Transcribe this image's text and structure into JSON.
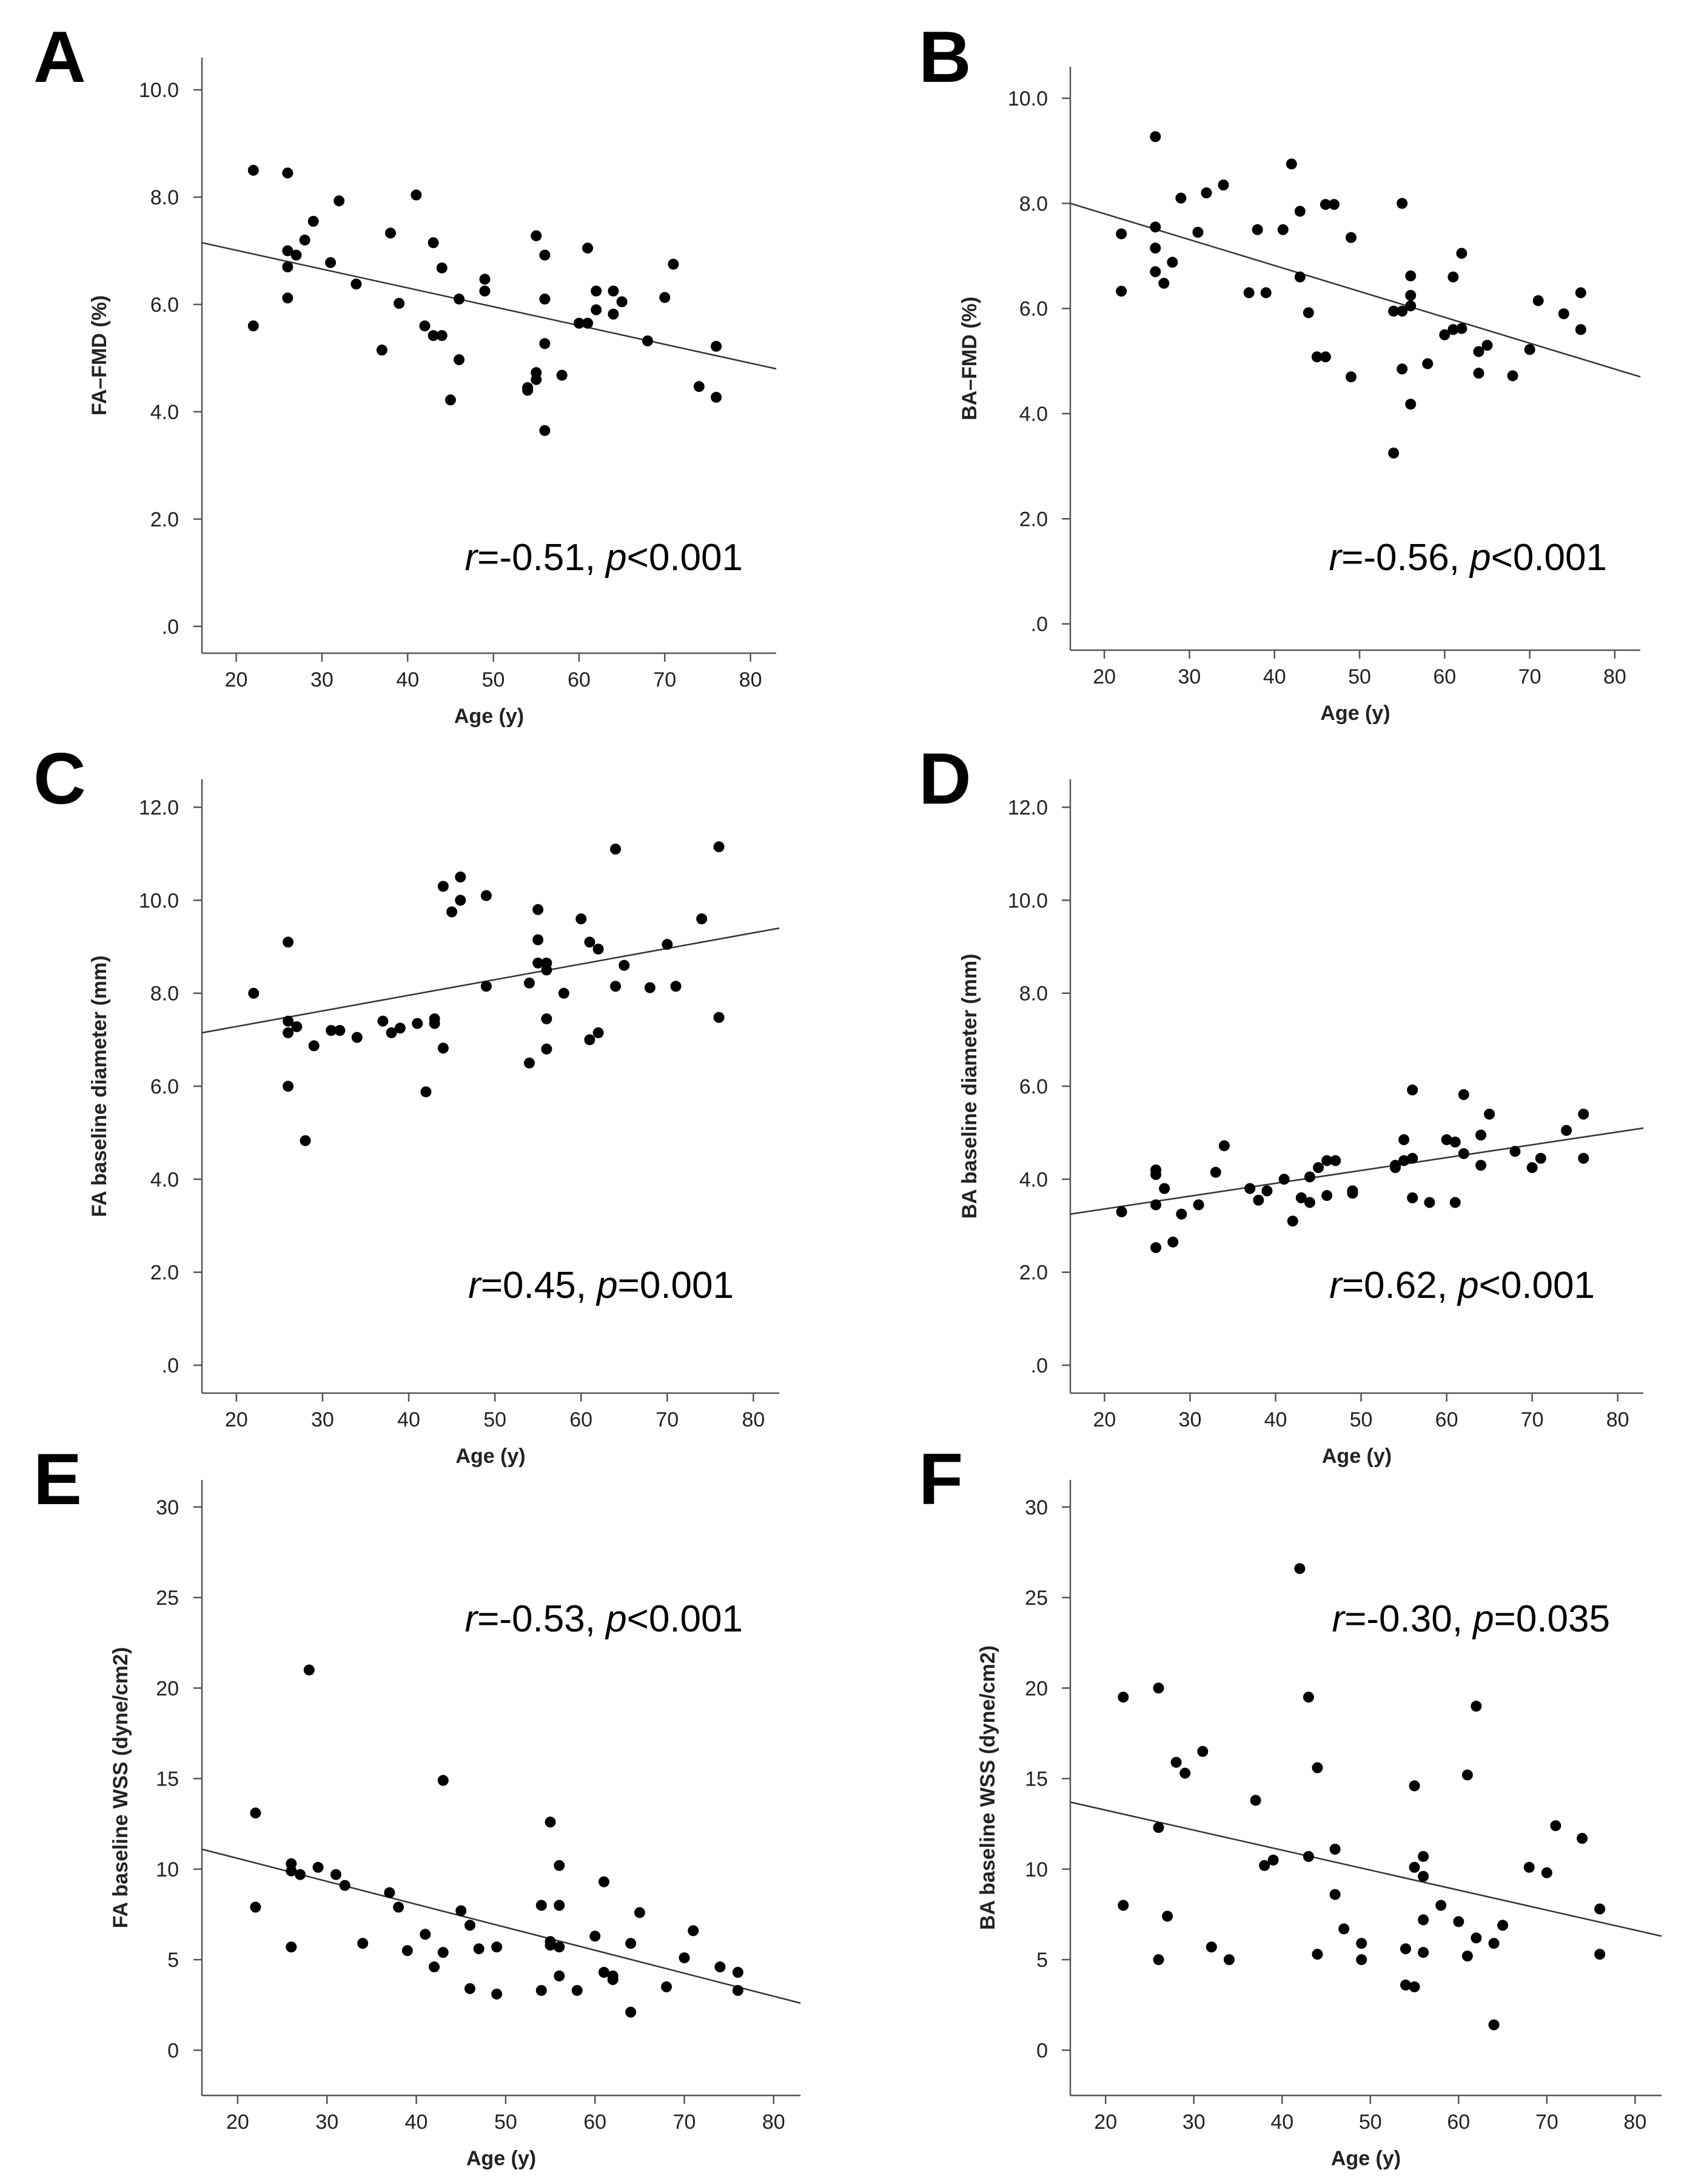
{
  "chart_data": [
    {
      "panel": "A",
      "type": "scatter",
      "xlabel": "Age (y)",
      "ylabel": "FA–FMD (%)",
      "xlim": [
        16,
        83
      ],
      "ylim": [
        -0.5,
        10.6
      ],
      "xticks": [
        20,
        30,
        40,
        50,
        60,
        70,
        80
      ],
      "yticks": [
        0,
        2,
        4,
        6,
        8,
        10
      ],
      "yticklabels": [
        ".0",
        "2.0",
        "4.0",
        "6.0",
        "8.0",
        "10.0"
      ],
      "annotation": {
        "stat": "r",
        "r_text": "=-0.51, ",
        "p_label": "p",
        "p_text": "<0.001"
      },
      "fit": [
        [
          16,
          7.15
        ],
        [
          83,
          4.8
        ]
      ],
      "points": [
        [
          22,
          8.5
        ],
        [
          22,
          5.6
        ],
        [
          26,
          8.45
        ],
        [
          26,
          7.0
        ],
        [
          26,
          6.7
        ],
        [
          26,
          6.12
        ],
        [
          27,
          6.92
        ],
        [
          28,
          7.2
        ],
        [
          29,
          7.55
        ],
        [
          31,
          6.78
        ],
        [
          32,
          7.93
        ],
        [
          34,
          6.38
        ],
        [
          37,
          5.15
        ],
        [
          38,
          7.33
        ],
        [
          39,
          6.02
        ],
        [
          41,
          8.04
        ],
        [
          42,
          5.6
        ],
        [
          43,
          7.15
        ],
        [
          43,
          5.42
        ],
        [
          44,
          6.68
        ],
        [
          44,
          5.42
        ],
        [
          45,
          4.22
        ],
        [
          46,
          6.1
        ],
        [
          46,
          4.97
        ],
        [
          49,
          6.47
        ],
        [
          49,
          6.25
        ],
        [
          54,
          4.45
        ],
        [
          54,
          4.4
        ],
        [
          55,
          7.28
        ],
        [
          55,
          4.73
        ],
        [
          55,
          4.6
        ],
        [
          56,
          6.92
        ],
        [
          56,
          6.1
        ],
        [
          56,
          5.27
        ],
        [
          56,
          3.65
        ],
        [
          58,
          4.68
        ],
        [
          60,
          5.65
        ],
        [
          61,
          7.05
        ],
        [
          61,
          5.65
        ],
        [
          62,
          6.25
        ],
        [
          62,
          5.9
        ],
        [
          64,
          6.25
        ],
        [
          64,
          5.82
        ],
        [
          65,
          6.05
        ],
        [
          68,
          5.32
        ],
        [
          70,
          6.13
        ],
        [
          71,
          6.75
        ],
        [
          74,
          4.47
        ],
        [
          76,
          5.22
        ],
        [
          76,
          4.27
        ]
      ]
    },
    {
      "panel": "B",
      "type": "scatter",
      "xlabel": "Age (y)",
      "ylabel": "BA–FMD (%)",
      "xlim": [
        16,
        83
      ],
      "ylim": [
        -0.5,
        10.6
      ],
      "xticks": [
        20,
        30,
        40,
        50,
        60,
        70,
        80
      ],
      "yticks": [
        0,
        2,
        4,
        6,
        8,
        10
      ],
      "yticklabels": [
        ".0",
        "2.0",
        "4.0",
        "6.0",
        "8.0",
        "10.0"
      ],
      "annotation": {
        "stat": "r",
        "r_text": "=-0.56, ",
        "p_label": "p",
        "p_text": "<0.001"
      },
      "fit": [
        [
          16,
          8.0
        ],
        [
          83,
          4.7
        ]
      ],
      "points": [
        [
          22,
          7.42
        ],
        [
          22,
          6.33
        ],
        [
          26,
          9.27
        ],
        [
          26,
          7.55
        ],
        [
          26,
          7.15
        ],
        [
          26,
          6.7
        ],
        [
          27,
          6.48
        ],
        [
          28,
          6.88
        ],
        [
          29,
          8.1
        ],
        [
          31,
          7.45
        ],
        [
          32,
          8.2
        ],
        [
          34,
          8.35
        ],
        [
          37,
          6.3
        ],
        [
          38,
          7.5
        ],
        [
          39,
          6.3
        ],
        [
          41,
          7.5
        ],
        [
          42,
          8.75
        ],
        [
          43,
          7.85
        ],
        [
          43,
          6.6
        ],
        [
          44,
          5.92
        ],
        [
          45,
          5.08
        ],
        [
          46,
          7.98
        ],
        [
          46,
          5.08
        ],
        [
          47,
          7.98
        ],
        [
          49,
          7.35
        ],
        [
          49,
          4.7
        ],
        [
          54,
          5.95
        ],
        [
          54,
          3.25
        ],
        [
          55,
          8.0
        ],
        [
          55,
          5.95
        ],
        [
          55,
          4.85
        ],
        [
          56,
          6.62
        ],
        [
          56,
          6.25
        ],
        [
          56,
          6.05
        ],
        [
          56,
          4.18
        ],
        [
          58,
          4.95
        ],
        [
          60,
          5.5
        ],
        [
          61,
          6.6
        ],
        [
          61,
          5.6
        ],
        [
          62,
          7.05
        ],
        [
          62,
          5.62
        ],
        [
          64,
          5.18
        ],
        [
          64,
          4.77
        ],
        [
          65,
          5.3
        ],
        [
          68,
          4.72
        ],
        [
          70,
          5.22
        ],
        [
          71,
          6.15
        ],
        [
          74,
          5.9
        ],
        [
          76,
          6.3
        ],
        [
          76,
          5.6
        ]
      ]
    },
    {
      "panel": "C",
      "type": "scatter",
      "xlabel": "Age (y)",
      "ylabel": "FA baseline diameter (mm)",
      "xlim": [
        16,
        83
      ],
      "ylim": [
        -0.6,
        12.6
      ],
      "xticks": [
        20,
        30,
        40,
        50,
        60,
        70,
        80
      ],
      "yticks": [
        0,
        2,
        4,
        6,
        8,
        10,
        12
      ],
      "yticklabels": [
        ".0",
        "2.0",
        "4.0",
        "6.0",
        "8.0",
        "10.0",
        "12.0"
      ],
      "annotation": {
        "stat": "r",
        "r_text": "=0.45, ",
        "p_label": "p",
        "p_text": "=0.001"
      },
      "fit": [
        [
          16,
          7.15
        ],
        [
          83,
          9.4
        ]
      ],
      "points": [
        [
          22,
          8.0
        ],
        [
          26,
          9.1
        ],
        [
          26,
          7.4
        ],
        [
          26,
          7.15
        ],
        [
          26,
          6.0
        ],
        [
          27,
          7.28
        ],
        [
          28,
          4.83
        ],
        [
          29,
          6.87
        ],
        [
          31,
          7.2
        ],
        [
          32,
          7.2
        ],
        [
          34,
          7.05
        ],
        [
          37,
          7.4
        ],
        [
          38,
          7.15
        ],
        [
          39,
          7.25
        ],
        [
          41,
          7.35
        ],
        [
          42,
          5.88
        ],
        [
          43,
          7.45
        ],
        [
          43,
          7.35
        ],
        [
          44,
          10.3
        ],
        [
          44,
          6.82
        ],
        [
          45,
          9.75
        ],
        [
          46,
          10.5
        ],
        [
          46,
          10.0
        ],
        [
          49,
          10.1
        ],
        [
          49,
          8.15
        ],
        [
          54,
          8.22
        ],
        [
          54,
          6.5
        ],
        [
          55,
          9.8
        ],
        [
          55,
          9.15
        ],
        [
          55,
          8.65
        ],
        [
          56,
          8.65
        ],
        [
          56,
          8.5
        ],
        [
          56,
          7.45
        ],
        [
          56,
          6.8
        ],
        [
          58,
          8.0
        ],
        [
          60,
          9.6
        ],
        [
          61,
          9.1
        ],
        [
          61,
          7.0
        ],
        [
          62,
          8.95
        ],
        [
          62,
          7.15
        ],
        [
          64,
          11.1
        ],
        [
          64,
          8.15
        ],
        [
          65,
          8.6
        ],
        [
          68,
          8.12
        ],
        [
          70,
          9.05
        ],
        [
          71,
          8.15
        ],
        [
          74,
          9.6
        ],
        [
          76,
          11.15
        ],
        [
          76,
          7.48
        ]
      ]
    },
    {
      "panel": "D",
      "type": "scatter",
      "xlabel": "Age (y)",
      "ylabel": "BA baseline diameter (mm)",
      "xlim": [
        16,
        83
      ],
      "ylim": [
        -0.6,
        12.6
      ],
      "xticks": [
        20,
        30,
        40,
        50,
        60,
        70,
        80
      ],
      "yticks": [
        0,
        2,
        4,
        6,
        8,
        10,
        12
      ],
      "yticklabels": [
        ".0",
        "2.0",
        "4.0",
        "6.0",
        "8.0",
        "10.0",
        "12.0"
      ],
      "annotation": {
        "stat": "r",
        "r_text": "=0.62, ",
        "p_label": "p",
        "p_text": "<0.001"
      },
      "fit": [
        [
          16,
          3.25
        ],
        [
          83,
          5.1
        ]
      ],
      "points": [
        [
          22,
          3.3
        ],
        [
          26,
          4.2
        ],
        [
          26,
          4.1
        ],
        [
          26,
          3.45
        ],
        [
          26,
          2.53
        ],
        [
          27,
          3.8
        ],
        [
          28,
          2.65
        ],
        [
          29,
          3.25
        ],
        [
          31,
          3.45
        ],
        [
          33,
          4.15
        ],
        [
          34,
          4.72
        ],
        [
          37,
          3.8
        ],
        [
          38,
          3.55
        ],
        [
          39,
          3.75
        ],
        [
          41,
          4.0
        ],
        [
          42,
          3.1
        ],
        [
          43,
          3.6
        ],
        [
          44,
          4.05
        ],
        [
          44,
          3.5
        ],
        [
          45,
          4.25
        ],
        [
          46,
          4.4
        ],
        [
          46,
          3.65
        ],
        [
          47,
          4.4
        ],
        [
          49,
          3.75
        ],
        [
          49,
          3.7
        ],
        [
          54,
          4.3
        ],
        [
          54,
          4.25
        ],
        [
          55,
          4.85
        ],
        [
          55,
          4.4
        ],
        [
          56,
          5.92
        ],
        [
          56,
          4.45
        ],
        [
          56,
          3.6
        ],
        [
          58,
          3.5
        ],
        [
          60,
          4.85
        ],
        [
          61,
          4.8
        ],
        [
          61,
          3.5
        ],
        [
          62,
          5.82
        ],
        [
          62,
          4.55
        ],
        [
          64,
          4.95
        ],
        [
          64,
          4.3
        ],
        [
          65,
          5.4
        ],
        [
          68,
          4.6
        ],
        [
          70,
          4.25
        ],
        [
          71,
          4.45
        ],
        [
          74,
          5.05
        ],
        [
          76,
          5.4
        ],
        [
          76,
          4.45
        ]
      ]
    },
    {
      "panel": "E",
      "type": "scatter",
      "xlabel": "Age (y)",
      "ylabel": "FA baseline WSS (dyne/cm2)",
      "xlim": [
        16,
        83
      ],
      "ylim": [
        -2.5,
        31.5
      ],
      "xticks": [
        20,
        30,
        40,
        50,
        60,
        70,
        80
      ],
      "yticks": [
        0,
        5,
        10,
        15,
        20,
        25,
        30
      ],
      "yticklabels": [
        "0",
        "5",
        "10",
        "15",
        "20",
        "25",
        "30"
      ],
      "annotation": {
        "stat": "r",
        "r_text": "=-0.53, ",
        "p_label": "p",
        "p_text": "<0.001"
      },
      "fit": [
        [
          16,
          11.1
        ],
        [
          83,
          2.6
        ]
      ],
      "points": [
        [
          22,
          13.1
        ],
        [
          22,
          7.9
        ],
        [
          26,
          10.3
        ],
        [
          26,
          9.9
        ],
        [
          26,
          5.7
        ],
        [
          27,
          9.7
        ],
        [
          28,
          21.0
        ],
        [
          29,
          10.1
        ],
        [
          31,
          9.7
        ],
        [
          32,
          9.1
        ],
        [
          34,
          5.9
        ],
        [
          37,
          8.7
        ],
        [
          38,
          7.9
        ],
        [
          39,
          5.5
        ],
        [
          41,
          6.4
        ],
        [
          42,
          4.6
        ],
        [
          43,
          14.9
        ],
        [
          43,
          5.4
        ],
        [
          45,
          7.7
        ],
        [
          46,
          6.9
        ],
        [
          46,
          3.4
        ],
        [
          47,
          5.6
        ],
        [
          49,
          5.7
        ],
        [
          49,
          3.1
        ],
        [
          54,
          8.0
        ],
        [
          54,
          3.3
        ],
        [
          55,
          12.6
        ],
        [
          55,
          6.0
        ],
        [
          55,
          5.8
        ],
        [
          56,
          10.2
        ],
        [
          56,
          8.0
        ],
        [
          56,
          5.7
        ],
        [
          56,
          4.1
        ],
        [
          58,
          3.3
        ],
        [
          60,
          6.3
        ],
        [
          61,
          9.3
        ],
        [
          61,
          4.3
        ],
        [
          62,
          4.1
        ],
        [
          62,
          3.9
        ],
        [
          64,
          5.9
        ],
        [
          64,
          2.1
        ],
        [
          65,
          7.6
        ],
        [
          68,
          3.5
        ],
        [
          70,
          5.1
        ],
        [
          71,
          6.6
        ],
        [
          74,
          4.6
        ],
        [
          76,
          4.3
        ],
        [
          76,
          3.3
        ]
      ]
    },
    {
      "panel": "F",
      "type": "scatter",
      "xlabel": "Age (y)",
      "ylabel": "BA baseline WSS (dyne/cm2)",
      "xlim": [
        16,
        83
      ],
      "ylim": [
        -2.5,
        31.5
      ],
      "xticks": [
        20,
        30,
        40,
        50,
        60,
        70,
        80
      ],
      "yticks": [
        0,
        5,
        10,
        15,
        20,
        25,
        30
      ],
      "yticklabels": [
        "0",
        "5",
        "10",
        "15",
        "20",
        "25",
        "30"
      ],
      "annotation": {
        "stat": "r",
        "r_text": "=-0.30, ",
        "p_label": "p",
        "p_text": "=0.035"
      },
      "fit": [
        [
          16,
          13.7
        ],
        [
          83,
          6.3
        ]
      ],
      "points": [
        [
          22,
          19.5
        ],
        [
          22,
          8.0
        ],
        [
          26,
          20.0
        ],
        [
          26,
          12.3
        ],
        [
          26,
          5.0
        ],
        [
          27,
          7.4
        ],
        [
          28,
          15.9
        ],
        [
          29,
          15.3
        ],
        [
          31,
          16.5
        ],
        [
          32,
          5.7
        ],
        [
          34,
          5.0
        ],
        [
          37,
          13.8
        ],
        [
          38,
          10.2
        ],
        [
          39,
          10.5
        ],
        [
          42,
          26.6
        ],
        [
          43,
          19.5
        ],
        [
          43,
          10.7
        ],
        [
          44,
          15.6
        ],
        [
          44,
          5.3
        ],
        [
          46,
          11.1
        ],
        [
          46,
          8.6
        ],
        [
          47,
          6.7
        ],
        [
          49,
          5.9
        ],
        [
          49,
          5.0
        ],
        [
          54,
          5.6
        ],
        [
          54,
          3.6
        ],
        [
          55,
          14.6
        ],
        [
          55,
          10.1
        ],
        [
          55,
          3.5
        ],
        [
          56,
          10.7
        ],
        [
          56,
          9.6
        ],
        [
          56,
          7.2
        ],
        [
          56,
          5.4
        ],
        [
          58,
          8.0
        ],
        [
          60,
          7.1
        ],
        [
          61,
          15.2
        ],
        [
          61,
          5.2
        ],
        [
          62,
          19.0
        ],
        [
          62,
          6.2
        ],
        [
          64,
          5.9
        ],
        [
          64,
          1.4
        ],
        [
          65,
          6.9
        ],
        [
          68,
          10.1
        ],
        [
          70,
          9.8
        ],
        [
          71,
          12.4
        ],
        [
          74,
          11.7
        ],
        [
          76,
          7.8
        ],
        [
          76,
          5.3
        ]
      ]
    }
  ]
}
